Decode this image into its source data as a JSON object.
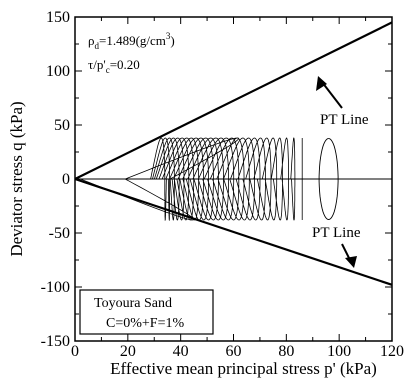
{
  "chart_data": {
    "type": "line",
    "xlabel": "Effective mean principal stress p' (kPa)",
    "ylabel": "Deviator stress q (kPa)",
    "xlim": [
      0,
      120
    ],
    "ylim": [
      -150,
      150
    ],
    "x_ticks": [
      "0",
      "20",
      "40",
      "60",
      "80",
      "100",
      "120"
    ],
    "y_ticks": [
      "150",
      "100",
      "50",
      "0",
      "-50",
      "-100",
      "-150"
    ],
    "annotation_density": {
      "base": "ρ",
      "sub": "d",
      "rest": "=1.489(g/cm",
      "sup": "3",
      "close": ")"
    },
    "annotation_ratio": {
      "base": "τ/p'",
      "sub": "c",
      "rest": "=0.20"
    },
    "legend": {
      "line1": "Toyoura Sand",
      "line2": "C=0%+F=1%",
      "placement": "bottom-left"
    },
    "pt_lines": [
      {
        "label": "PT Line",
        "points": [
          [
            0,
            0
          ],
          [
            120,
            145
          ]
        ]
      },
      {
        "label": "PT Line",
        "points": [
          [
            0,
            0
          ],
          [
            120,
            -98
          ]
        ]
      }
    ],
    "zero_line": 0,
    "stress_path": {
      "cyclic_amplitude": 38,
      "start_p": 86,
      "compression_end": 25,
      "extension_end": 35,
      "final_p": 34,
      "cycles": 27
    }
  }
}
